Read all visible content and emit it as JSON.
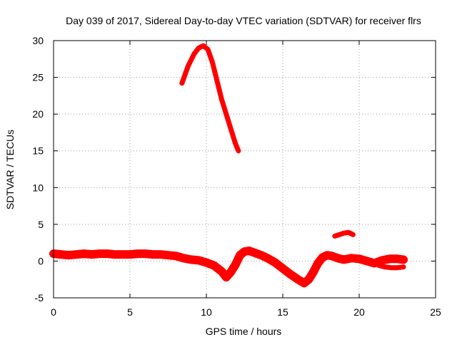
{
  "chart_data": {
    "type": "line",
    "title": "Day 039 of 2017, Sidereal Day-to-day VTEC variation (SDTVAR) for receiver flrs",
    "xlabel": "GPS time / hours",
    "ylabel": "SDTVAR / TECUs",
    "xlim": [
      0,
      25
    ],
    "ylim": [
      -5,
      30
    ],
    "xticks": [
      0,
      5,
      10,
      15,
      20,
      25
    ],
    "yticks": [
      -5,
      0,
      5,
      10,
      15,
      20,
      25,
      30
    ],
    "grid": true,
    "legend": "none",
    "color": "#ff0000",
    "series": [
      {
        "name": "arc-1",
        "x": [
          8.4,
          8.8,
          9.2,
          9.5,
          9.8,
          10.1,
          10.4,
          10.7,
          11.0,
          11.3,
          11.6,
          11.9,
          12.1
        ],
        "y": [
          24.2,
          26.5,
          28.2,
          29.0,
          29.3,
          28.8,
          27.0,
          24.5,
          22.0,
          20.0,
          18.0,
          16.0,
          15.0
        ]
      },
      {
        "name": "arc-2",
        "x": [
          18.4,
          18.7,
          19.0,
          19.3,
          19.6
        ],
        "y": [
          3.4,
          3.6,
          3.8,
          3.9,
          3.6
        ]
      },
      {
        "name": "arc-3",
        "x": [
          0,
          0.5,
          1,
          1.5,
          2,
          2.5,
          3,
          3.5,
          4,
          4.5,
          5,
          5.5,
          6,
          6.5,
          7,
          7.5,
          8,
          8.5,
          9,
          9.5,
          10,
          10.5,
          11,
          11.3,
          11.6,
          11.9,
          12.2,
          12.5,
          12.8,
          13.2,
          13.6,
          14.0,
          14.5,
          15.0,
          15.5,
          16.0,
          16.4,
          16.7,
          17.0,
          17.3,
          17.6,
          17.9,
          18.2,
          18.6,
          19.0,
          19.5,
          20.0,
          20.5,
          21.0,
          21.5,
          22.0,
          22.5,
          22.9
        ],
        "y": [
          1.0,
          0.9,
          0.8,
          0.9,
          1.0,
          0.9,
          1.0,
          1.0,
          0.9,
          0.9,
          0.9,
          1.0,
          1.0,
          0.9,
          0.9,
          0.8,
          0.7,
          0.4,
          0.2,
          0.1,
          -0.2,
          -0.6,
          -1.4,
          -2.2,
          -1.5,
          -0.5,
          0.8,
          1.3,
          1.4,
          1.1,
          0.8,
          0.4,
          -0.2,
          -1.0,
          -1.8,
          -2.5,
          -3.0,
          -2.5,
          -1.5,
          -0.3,
          0.5,
          0.8,
          0.7,
          0.4,
          0.2,
          0.4,
          0.3,
          0.0,
          -0.3,
          0.1,
          0.3,
          0.3,
          0.2
        ]
      },
      {
        "name": "arc-4",
        "x": [
          21.3,
          21.7,
          22.1,
          22.5,
          22.9
        ],
        "y": [
          -0.6,
          -0.8,
          -0.9,
          -0.9,
          -0.8
        ]
      }
    ]
  }
}
